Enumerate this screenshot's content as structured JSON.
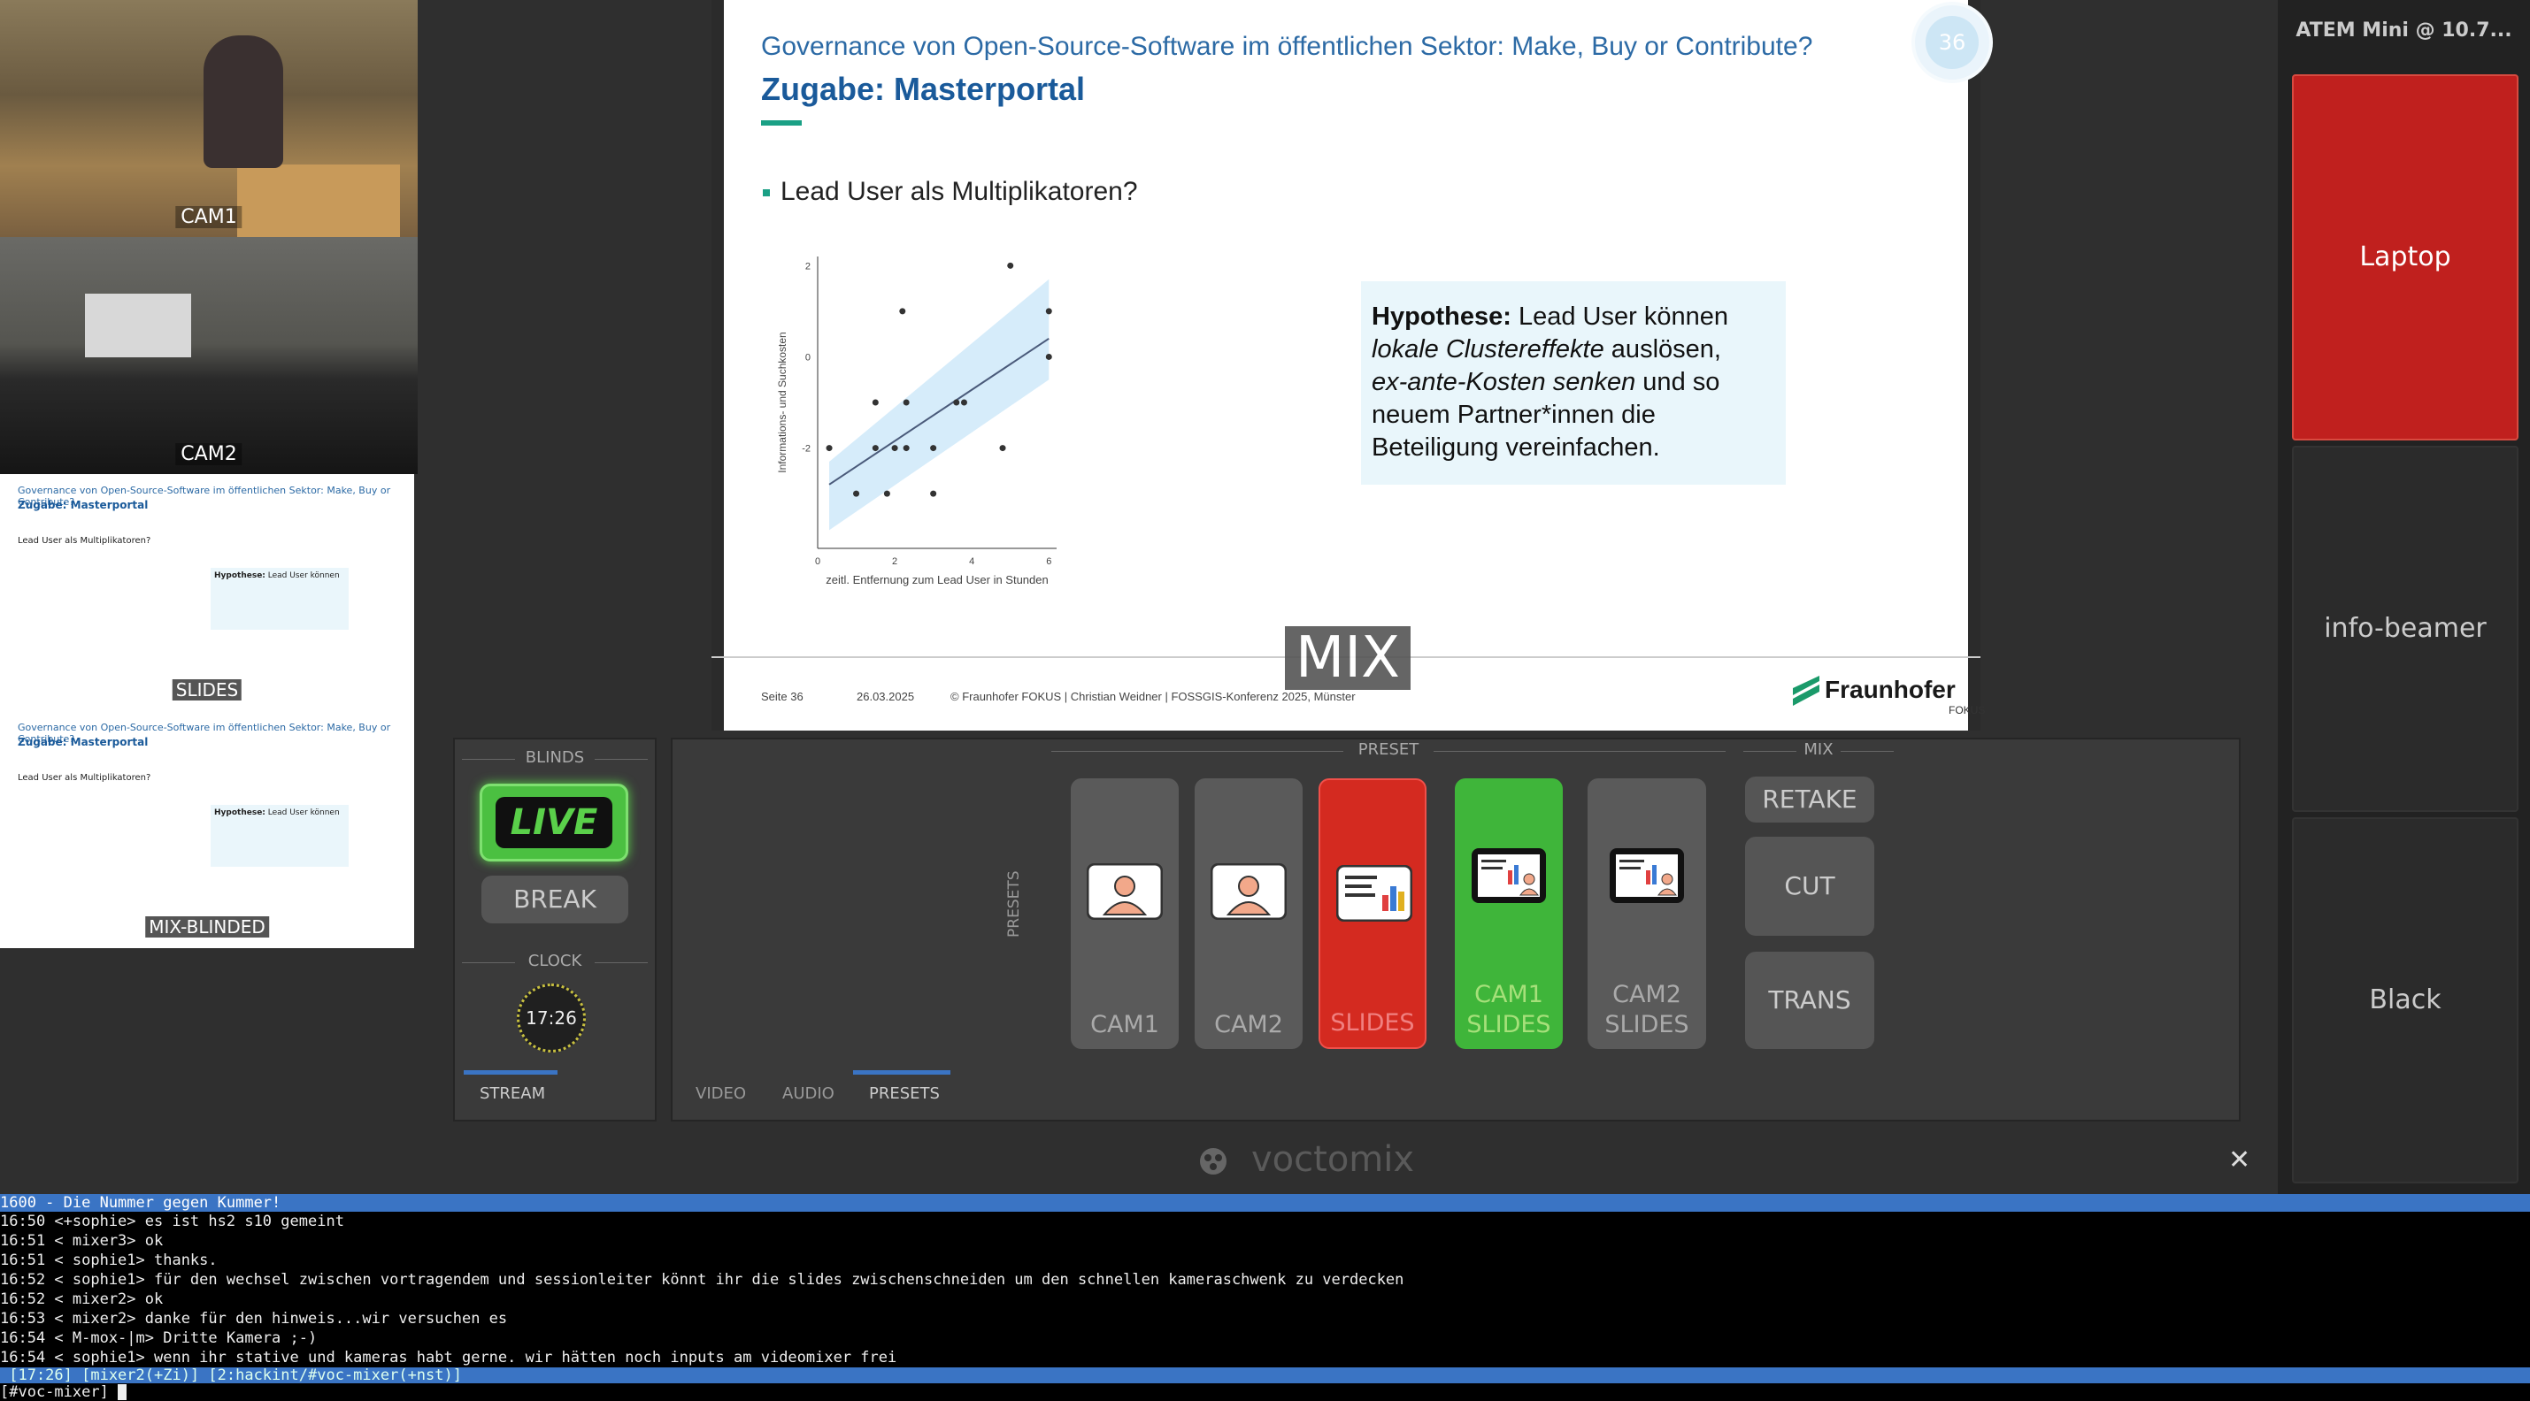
{
  "sources": {
    "cam1_label": "CAM1",
    "cam2_label": "CAM2",
    "slides_label": "SLIDES",
    "mix_blinded_label": "MIX-BLINDED"
  },
  "slide": {
    "title": "Governance von Open-Source-Software im öffentlichen Sektor: Make, Buy or Contribute?",
    "subtitle": "Zugabe: Masterportal",
    "bullet": "Lead User als Multiplikatoren?",
    "hypothesis_bold": "Hypothese:",
    "hypothesis_line1": " Lead User können",
    "hypothesis_italic1": "lokale Clustereffekte",
    "hypothesis_line2": " auslösen,",
    "hypothesis_italic2": "ex-ante-Kosten senken",
    "hypothesis_line3": " und so",
    "hypothesis_line4": "neuem Partner*innen die",
    "hypothesis_line5": "Beteiligung vereinfachen.",
    "page_number": "36",
    "footer_page": "Seite 36",
    "footer_date": "26.03.2025",
    "footer_credit": "© Fraunhofer FOKUS | Christian Weidner | FOSSGIS-Konferenz 2025, Münster",
    "logo_text": "Fraunhofer",
    "logo_sub": "FOKUS",
    "overlay": "MIX"
  },
  "chart_data": {
    "type": "scatter",
    "xlabel": "zeitl. Entfernung zum Lead User in Stunden",
    "ylabel": "Informations- und Suchkosten",
    "x_ticks": [
      "0",
      "2",
      "4",
      "6"
    ],
    "y_ticks": [
      "2",
      "0",
      "-2"
    ],
    "xlim": [
      0,
      6.2
    ],
    "ylim": [
      -4.2,
      2.2
    ],
    "points": [
      {
        "x": 0.3,
        "y": -2
      },
      {
        "x": 1.0,
        "y": -3
      },
      {
        "x": 1.5,
        "y": -1
      },
      {
        "x": 1.5,
        "y": -2
      },
      {
        "x": 1.8,
        "y": -3
      },
      {
        "x": 2.0,
        "y": -2
      },
      {
        "x": 2.2,
        "y": 1
      },
      {
        "x": 2.3,
        "y": -1
      },
      {
        "x": 2.3,
        "y": -2
      },
      {
        "x": 3.0,
        "y": -2
      },
      {
        "x": 3.0,
        "y": -3
      },
      {
        "x": 3.6,
        "y": -1
      },
      {
        "x": 3.8,
        "y": -1
      },
      {
        "x": 4.8,
        "y": -2
      },
      {
        "x": 5.0,
        "y": 2
      },
      {
        "x": 6.0,
        "y": 1
      },
      {
        "x": 6.0,
        "y": 0
      }
    ],
    "trend": {
      "x": [
        0.3,
        6.0
      ],
      "y": [
        -2.8,
        0.4
      ]
    },
    "grid": false
  },
  "right": {
    "title": "ATEM Mini @ 10.7...",
    "laptop": "Laptop",
    "infobeamer": "info-beamer",
    "black": "Black",
    "laptop_color": "#c0201e"
  },
  "blinds": {
    "header": "BLINDS",
    "live": "LIVE",
    "break": "BREAK",
    "clock_header": "CLOCK",
    "clock": "17:26",
    "stream_tab": "STREAM"
  },
  "presets": {
    "header_preset": "PRESET",
    "header_mix": "MIX",
    "side_label": "PRESETS",
    "items": [
      {
        "label": "CAM1"
      },
      {
        "label": "CAM2"
      },
      {
        "label": "SLIDES"
      },
      {
        "label": "CAM1\nSLIDES"
      },
      {
        "label": "CAM2\nSLIDES"
      }
    ],
    "retake": "RETAKE",
    "cut": "CUT",
    "trans": "TRANS",
    "tabs": [
      "VIDEO",
      "AUDIO",
      "PRESETS"
    ],
    "active_color": "#d42a20",
    "preview_color": "#3fb53a"
  },
  "app": {
    "name": "voctomix",
    "close": "✕"
  },
  "irc": {
    "topic": " 1600 - Die Nummer gegen Kummer!",
    "lines": [
      "16:50 <+sophie> es ist hs2 s10 gemeint",
      "16:51 < mixer3> ok",
      "16:51 < sophie1> thanks.",
      "16:52 < sophie1> für den wechsel zwischen vortragendem und sessionleiter könnt ihr die slides zwischenschneiden um den schnellen kameraschwenk zu verdecken",
      "16:52 < mixer2> ok",
      "16:53 < mixer2> danke für den hinweis...wir versuchen es",
      "16:54 < M-mox-|m> Dritte Kamera ;-)",
      "16:54 < sophie1> wenn ihr stative und kameras habt gerne. wir hätten noch inputs am videomixer frei"
    ],
    "status": " [17:26] [mixer2(+Zi)] [2:hackint/#voc-mixer(+nst)]",
    "input": "[#voc-mixer] "
  }
}
